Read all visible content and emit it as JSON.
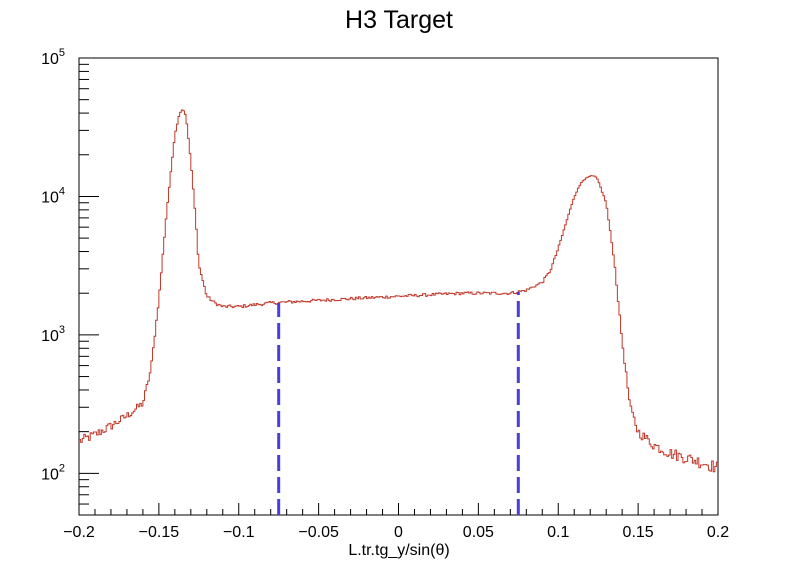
{
  "chart_data": {
    "type": "histogram",
    "title": "H3 Target",
    "xlabel": "L.tr.tg_y/sin(θ)",
    "ylabel": "",
    "xlim": [
      -0.2,
      0.2
    ],
    "ylim": [
      50,
      100000
    ],
    "yscale": "log",
    "grid": false,
    "legend": "none",
    "x_tick_labels": [
      "−0.2",
      "−0.15",
      "−0.1",
      "−0.05",
      "0",
      "0.05",
      "0.1",
      "0.15",
      "0.2"
    ],
    "x_tick_values": [
      -0.2,
      -0.15,
      -0.1,
      -0.05,
      0,
      0.05,
      0.1,
      0.15,
      0.2
    ],
    "y_tick_decades": [
      {
        "value": 100,
        "base": "10",
        "exp": "2"
      },
      {
        "value": 1000,
        "base": "10",
        "exp": "3"
      },
      {
        "value": 10000,
        "base": "10",
        "exp": "4"
      },
      {
        "value": 100000,
        "base": "10",
        "exp": "5"
      }
    ],
    "series": [
      {
        "line_color": "#c0392b",
        "x": [
          -0.2,
          -0.19,
          -0.18,
          -0.17,
          -0.16,
          -0.155,
          -0.15,
          -0.145,
          -0.14,
          -0.137,
          -0.135,
          -0.133,
          -0.13,
          -0.127,
          -0.125,
          -0.12,
          -0.115,
          -0.11,
          -0.1,
          -0.09,
          -0.08,
          -0.06,
          -0.04,
          -0.02,
          0,
          0.02,
          0.04,
          0.06,
          0.07,
          0.08,
          0.09,
          0.095,
          0.1,
          0.105,
          0.11,
          0.115,
          0.12,
          0.123,
          0.125,
          0.13,
          0.135,
          0.14,
          0.145,
          0.15,
          0.16,
          0.17,
          0.18,
          0.19,
          0.2
        ],
        "y": [
          170,
          190,
          220,
          260,
          320,
          560,
          1800,
          8000,
          28000,
          40000,
          43000,
          38000,
          18000,
          7000,
          3200,
          1900,
          1700,
          1600,
          1600,
          1650,
          1700,
          1750,
          1800,
          1850,
          1900,
          1950,
          2000,
          2000,
          2000,
          2100,
          2400,
          2900,
          4200,
          6500,
          10000,
          13000,
          14000,
          14000,
          13000,
          9000,
          3500,
          900,
          300,
          200,
          160,
          140,
          130,
          120,
          110
        ]
      }
    ],
    "annotations": [
      {
        "type": "vertical_dashed_line",
        "x": -0.075,
        "y_top": 1700,
        "color": "#4a3fd8"
      },
      {
        "type": "vertical_dashed_line",
        "x": 0.075,
        "y_top": 2050,
        "color": "#4a3fd8"
      }
    ]
  }
}
